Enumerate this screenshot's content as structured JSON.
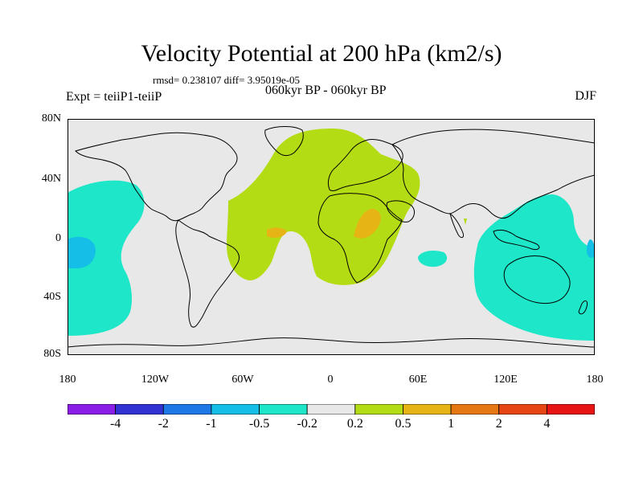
{
  "title": "Velocity Potential at 200 hPa (km2/s)",
  "stats": "rmsd= 0.238107 diff= 3.95019e-05",
  "experiment": "Expt = teiiP1-teiiP",
  "period": "060kyr BP - 060kyr BP",
  "season": "DJF",
  "lat_labels": [
    "80N",
    "40N",
    "0",
    "40S",
    "80S"
  ],
  "lon_labels": [
    "180",
    "120W",
    "60W",
    "0",
    "60E",
    "120E",
    "180"
  ],
  "colorbar": {
    "colors": [
      "#8a1ee6",
      "#3232d2",
      "#1e78e6",
      "#14bee6",
      "#1ee6c8",
      "#e8e8e8",
      "#b4dc14",
      "#e6b414",
      "#e67814",
      "#e64614",
      "#e61414"
    ],
    "labels": [
      "-4",
      "-2",
      "-1",
      "-0.5",
      "-0.2",
      "0.2",
      "0.5",
      "1",
      "2",
      "4"
    ]
  },
  "map_colors": {
    "background": "#e8e8e8",
    "negative_region": "#1ee6c8",
    "negative_core": "#14bee6",
    "positive_region": "#b4dc14",
    "positive_core": "#e6b414",
    "coastline": "#000000"
  }
}
